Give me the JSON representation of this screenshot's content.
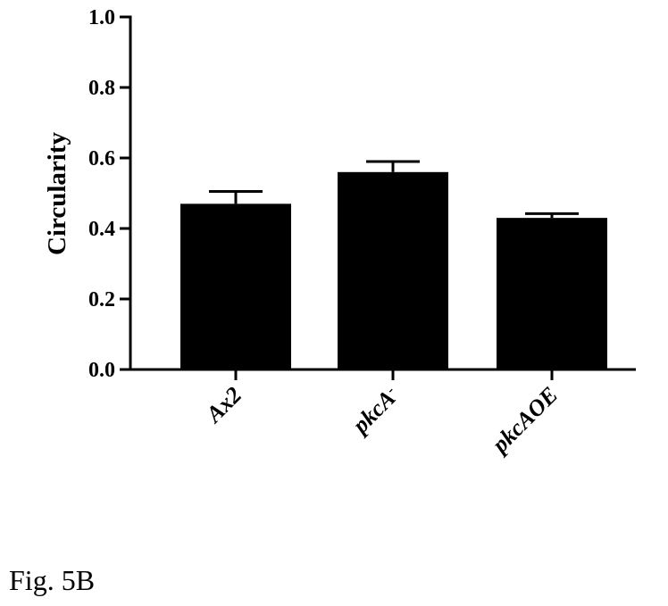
{
  "chart_data": {
    "type": "bar",
    "ylabel": "Circularity",
    "ylim": [
      0,
      1.0
    ],
    "yticks": [
      "0.0",
      "0.2",
      "0.4",
      "0.6",
      "0.8",
      "1.0"
    ],
    "categories": [
      {
        "base": "Ax2",
        "sup": ""
      },
      {
        "base": "pkcA",
        "sup": "-"
      },
      {
        "base": "pkcAOE",
        "sup": ""
      }
    ],
    "values": [
      0.47,
      0.56,
      0.43
    ],
    "errors": [
      0.035,
      0.03,
      0.012
    ],
    "bar_color": "#000000"
  },
  "caption": "Fig. 5B"
}
